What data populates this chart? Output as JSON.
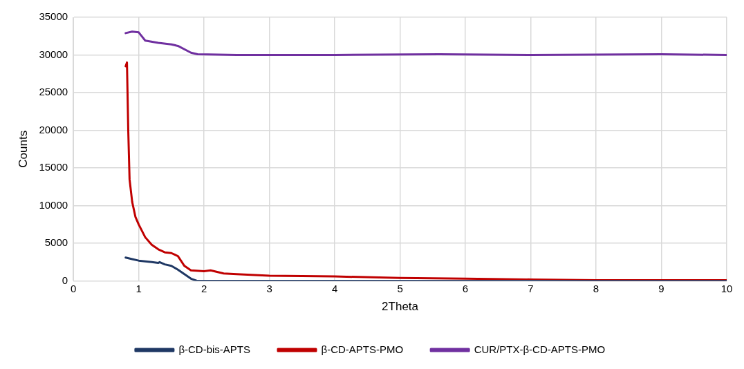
{
  "chart_data": {
    "type": "line",
    "xlabel": "2Theta",
    "ylabel": "Counts",
    "xlim": [
      0,
      10
    ],
    "xticks": [
      0,
      1,
      2,
      3,
      4,
      5,
      6,
      7,
      8,
      9,
      10
    ],
    "ylim": [
      0,
      35000
    ],
    "yticks": [
      0,
      5000,
      10000,
      15000,
      20000,
      25000,
      30000,
      35000
    ],
    "grid": true,
    "legend": "bottom",
    "marker": "none",
    "line_style": "solid",
    "series": [
      {
        "name": "β-CD-bis-APTS",
        "color": "#1f3864",
        "x": [
          0.8,
          0.9,
          1.0,
          1.1,
          1.2,
          1.3,
          1.32,
          1.4,
          1.5,
          1.6,
          1.7,
          1.8,
          1.9,
          2.5,
          4,
          6,
          8,
          10
        ],
        "values": [
          3100,
          2900,
          2700,
          2600,
          2500,
          2400,
          2500,
          2200,
          2000,
          1500,
          900,
          300,
          0,
          0,
          0,
          0,
          0,
          0
        ]
      },
      {
        "name": "β-CD-APTS-PMO",
        "color": "#c00000",
        "x": [
          0.8,
          0.82,
          0.84,
          0.86,
          0.9,
          0.95,
          1.0,
          1.1,
          1.2,
          1.3,
          1.4,
          1.5,
          1.6,
          1.7,
          1.8,
          2.0,
          2.1,
          2.3,
          2.5,
          3,
          4,
          5,
          6,
          7,
          8,
          9,
          10
        ],
        "values": [
          28500,
          29000,
          20000,
          13500,
          10500,
          8500,
          7500,
          5800,
          4800,
          4200,
          3800,
          3700,
          3300,
          2000,
          1400,
          1300,
          1400,
          1000,
          900,
          700,
          600,
          400,
          300,
          200,
          100,
          100,
          100
        ]
      },
      {
        "name": "CUR/PTX-β-CD-APTS-PMO",
        "color": "#7030a0",
        "x": [
          0.8,
          0.9,
          1.0,
          1.1,
          1.3,
          1.5,
          1.6,
          1.8,
          1.9,
          2.5,
          4,
          5.6,
          7,
          9,
          10
        ],
        "values": [
          32900,
          33100,
          33000,
          31900,
          31600,
          31400,
          31200,
          30300,
          30100,
          30000,
          30000,
          30100,
          30000,
          30100,
          30000
        ]
      }
    ]
  }
}
